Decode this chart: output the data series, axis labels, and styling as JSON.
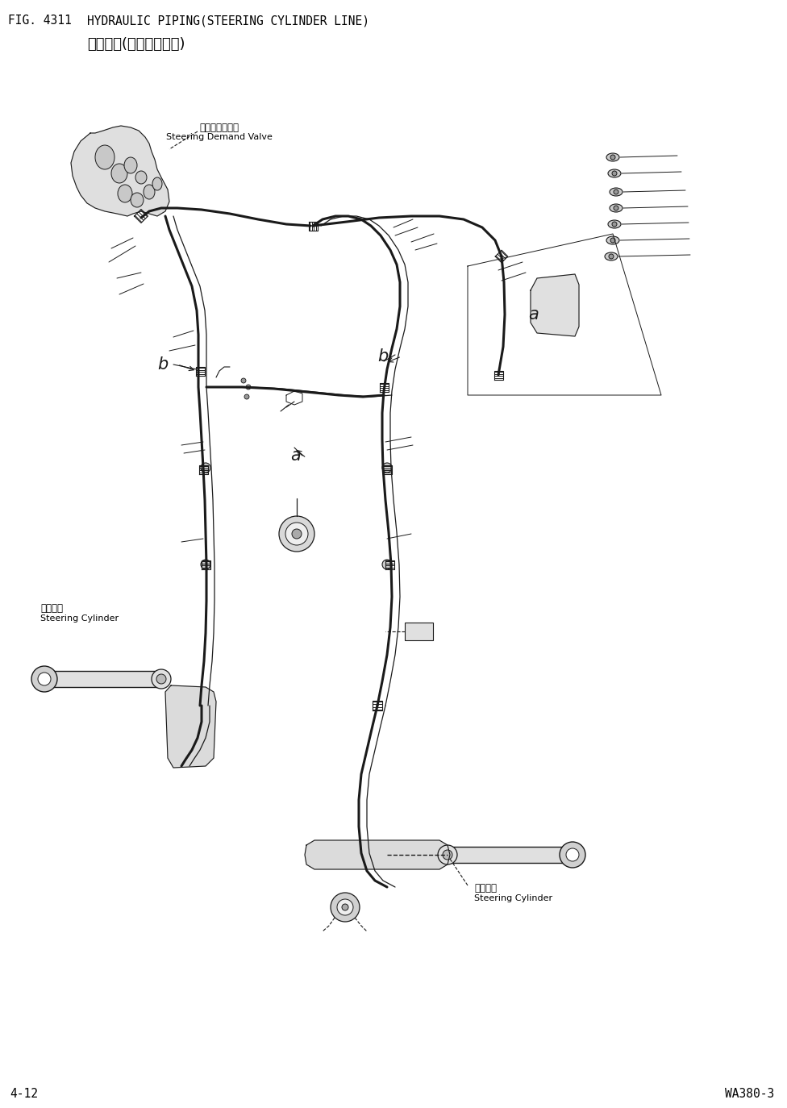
{
  "fig_number": "FIG. 4311",
  "title_en": "HYDRAULIC PIPING(STEERING CYLINDER LINE)",
  "title_cn": "油压管路(转向油缸回路)",
  "footer_left": "4-12",
  "footer_right": "WA380-3",
  "label_demand_valve_cn": "转向接需供油阀",
  "label_demand_valve_en": "Steering Demand Valve",
  "label_cyl_left_cn": "转叧油缸",
  "label_cyl_left_en": "Steering Cylinder",
  "label_cyl_right_cn": "转向油缸",
  "label_cyl_right_en": "Steering Cylinder",
  "bg_color": "#ffffff",
  "line_color": "#1a1a1a",
  "font_color": "#000000"
}
